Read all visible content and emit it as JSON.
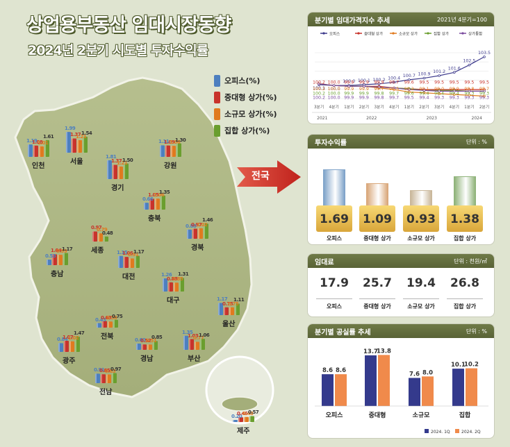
{
  "header": {
    "title": "상업용부동산 임대시장동향",
    "subtitle": "2024년 2분기 시도별 투자수익률"
  },
  "legend": [
    {
      "label": "오피스(%)",
      "color": "#4d7fbf"
    },
    {
      "label": "중대형 상가(%)",
      "color": "#c8332b"
    },
    {
      "label": "소규모 상가(%)",
      "color": "#e07a1f"
    },
    {
      "label": "집합 상가(%)",
      "color": "#6a9e2e"
    }
  ],
  "arrow_label": "전국",
  "colors": {
    "office": "#4d7fbf",
    "mid": "#c8332b",
    "small": "#e07a1f",
    "mall": "#6a9e2e",
    "panel_header": "#636c3d",
    "bar_q1": "#343a8c",
    "bar_q2": "#f08a4b"
  },
  "chart_data": [
    {
      "type": "bar",
      "title": "2024년 2분기 시도별 투자수익률",
      "series_labels": [
        "오피스(%)",
        "중대형 상가(%)",
        "소규모 상가(%)",
        "집합 상가(%)"
      ],
      "regions": [
        {
          "name": "인천",
          "values": [
            1.19,
            1.08,
            1.01,
            1.61
          ]
        },
        {
          "name": "서울",
          "values": [
            1.99,
            1.37,
            1.21,
            1.54
          ]
        },
        {
          "name": "강원",
          "values": [
            1.11,
            1.09,
            1.06,
            1.3
          ]
        },
        {
          "name": "경기",
          "values": [
            1.81,
            1.37,
            1.21,
            1.5
          ]
        },
        {
          "name": "충북",
          "values": [
            0.66,
            1.05,
            1.06,
            1.35
          ]
        },
        {
          "name": "세종",
          "values": [
            null,
            0.97,
            0.79,
            0.48
          ]
        },
        {
          "name": "경북",
          "values": [
            0.88,
            0.97,
            1.02,
            1.46
          ]
        },
        {
          "name": "충남",
          "values": [
            0.53,
            1.04,
            0.99,
            1.17
          ]
        },
        {
          "name": "대전",
          "values": [
            1.15,
            1.06,
            0.91,
            1.17
          ]
        },
        {
          "name": "대구",
          "values": [
            1.26,
            0.88,
            0.85,
            1.31
          ]
        },
        {
          "name": "전북",
          "values": [
            0.43,
            0.63,
            0.58,
            0.75
          ]
        },
        {
          "name": "울산",
          "values": [
            1.17,
            0.75,
            0.75,
            1.11
          ]
        },
        {
          "name": "광주",
          "values": [
            0.84,
            1.07,
            1.02,
            1.47
          ]
        },
        {
          "name": "경남",
          "values": [
            0.6,
            0.52,
            0.51,
            0.85
          ]
        },
        {
          "name": "부산",
          "values": [
            1.35,
            1.03,
            0.77,
            1.06
          ]
        },
        {
          "name": "전남",
          "values": [
            0.91,
            0.85,
            0.83,
            0.97
          ]
        },
        {
          "name": "제주",
          "values": [
            0.2,
            0.46,
            0.48,
            0.57
          ]
        }
      ]
    },
    {
      "type": "line",
      "title": "분기별 임대가격지수 추세",
      "note": "2021년 4분기=100",
      "quarters": [
        "3분기",
        "4분기",
        "1분기",
        "2분기",
        "3분기",
        "4분기",
        "1분기",
        "2분기",
        "3분기",
        "4분기",
        "1분기",
        "2분기"
      ],
      "years": [
        "2021",
        "2022",
        "2023",
        "2024"
      ],
      "series": [
        {
          "name": "오피스",
          "color": "#3d3a8c",
          "values": [
            100.1,
            100.0,
            100.0,
            100.1,
            100.2,
            100.4,
            100.7,
            100.9,
            101.2,
            101.6,
            102.5,
            103.5
          ]
        },
        {
          "name": "중대형 상가",
          "color": "#c8332b",
          "values": [
            100.2,
            100.0,
            99.9,
            99.9,
            99.9,
            99.7,
            99.6,
            99.5,
            99.5,
            99.5,
            99.5,
            99.5
          ]
        },
        {
          "name": "소규모 상가",
          "color": "#e07a1f",
          "values": [
            100.2,
            100.0,
            99.9,
            99.9,
            99.7,
            99.5,
            99.2,
            99.1,
            99.0,
            98.9,
            98.8,
            98.7
          ]
        },
        {
          "name": "집합 상가",
          "color": "#6a9e2e",
          "values": [
            100.2,
            100.0,
            99.9,
            99.9,
            99.8,
            99.7,
            99.6,
            99.4,
            99.4,
            99.4,
            99.3,
            99.3
          ]
        },
        {
          "name": "상가통합",
          "color": "#7a4a9e",
          "values": [
            100.2,
            100.0,
            99.9,
            99.9,
            99.8,
            99.7,
            99.5,
            99.4,
            99.3,
            99.3,
            99.3,
            99.3
          ]
        }
      ],
      "ylim": [
        98.4,
        104
      ]
    },
    {
      "type": "bar",
      "title": "투자수익률",
      "unit": "단위 : %",
      "categories": [
        "오피스",
        "중대형 상가",
        "소규모 상가",
        "집합 상가"
      ],
      "values": [
        1.69,
        1.09,
        0.93,
        1.38
      ]
    },
    {
      "type": "table",
      "title": "임대료",
      "unit": "단위 : 천원/㎡",
      "categories": [
        "오피스",
        "중대형 상가",
        "소규모 상가",
        "집합 상가"
      ],
      "values": [
        "17.9",
        "25.7",
        "19.4",
        "26.8"
      ]
    },
    {
      "type": "bar",
      "title": "분기별 공실률 추세",
      "unit": "단위 : %",
      "categories": [
        "오피스",
        "중대형",
        "소규모",
        "집합"
      ],
      "series": [
        {
          "name": "2024. 1Q",
          "values": [
            8.6,
            13.7,
            7.6,
            10.1
          ]
        },
        {
          "name": "2024. 2Q",
          "values": [
            8.6,
            13.8,
            8.0,
            10.2
          ]
        }
      ],
      "ylim": [
        0,
        15
      ]
    }
  ]
}
